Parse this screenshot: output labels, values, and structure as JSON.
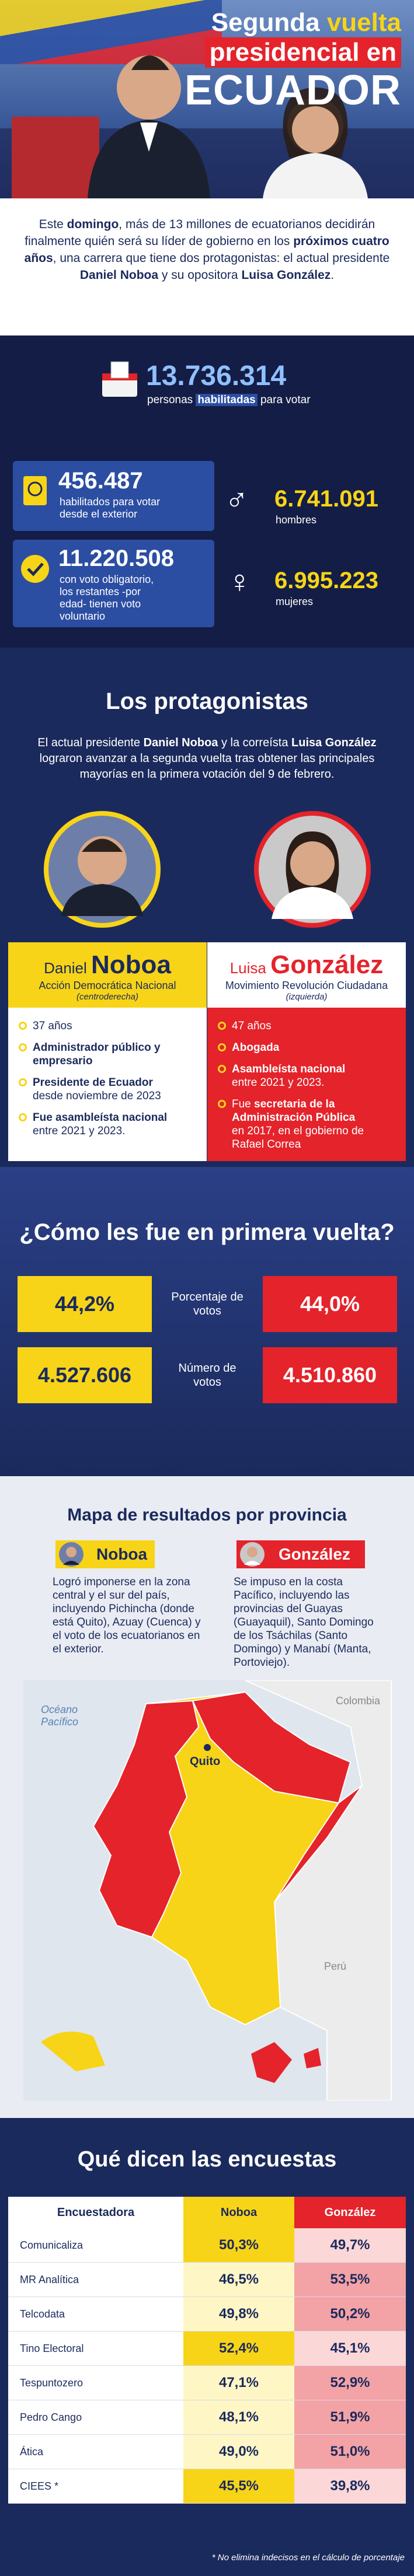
{
  "header": {
    "title": [
      "Segunda",
      "vuelta",
      "presidencial en",
      "ECUADOR"
    ]
  },
  "intro": [
    "Este ",
    "domingo",
    ", más de 13 millones de ecuatorianos decidirán finalmente quién será su líder de gobierno en los ",
    "próximos cuatro años",
    ", una carrera que tiene dos protagonistas: el actual presidente ",
    "Daniel Noboa",
    " y su opositora ",
    "Luisa González",
    "."
  ],
  "stats": {
    "total": {
      "number": "13.736.314",
      "label": [
        "personas ",
        "habilitadas",
        " para votar"
      ]
    },
    "exterior": {
      "number": "456.487",
      "label": "habilitados para votar desde el exterior"
    },
    "obligatory": {
      "number": "11.220.508",
      "label": "con voto obligatorio, los restantes -por edad- tienen voto voluntario"
    },
    "men": {
      "number": "6.741.091",
      "label": "hombres"
    },
    "women": {
      "number": "6.995.223",
      "label": "mujeres"
    }
  },
  "protagonists": {
    "title": "Los protagonistas",
    "text": [
      "El actual presidente ",
      "Daniel Noboa",
      " y la correísta ",
      "Luisa González",
      " lograron avanzar a la segunda vuelta tras obtener las principales mayorías en la primera votación del 9 de febrero."
    ],
    "candidates": [
      {
        "first": "Daniel",
        "last": "Noboa",
        "party": "Acción Democrática Nacional",
        "lean": "(centroderecha)",
        "bullets": [
          {
            "text": "37 años"
          },
          {
            "bold": "Administrador público y empresario"
          },
          {
            "bold": "Presidente de Ecuador",
            "text": "desde noviembre de 2023"
          },
          {
            "bold": "Fue asambleísta nacional",
            "text": "entre 2021 y 2023."
          }
        ]
      },
      {
        "first": "Luisa",
        "last": "González",
        "party": "Movimiento Revolución Ciudadana",
        "lean": "(izquierda)",
        "bullets": [
          {
            "text": "47 años"
          },
          {
            "bold": "Abogada"
          },
          {
            "bold": "Asambleísta nacional",
            "text": "entre 2021 y 2023."
          },
          {
            "pre": "Fue ",
            "bold": "secretaria de la Administración Pública",
            "text": "en 2017, en el gobierno de Rafael Correa"
          }
        ]
      }
    ]
  },
  "first_round": {
    "title": "¿Cómo les fue en primera vuelta?",
    "rows": [
      {
        "label": "Porcentaje de votos",
        "noboa": "44,2%",
        "gonzalez": "44,0%"
      },
      {
        "label": "Número de votos",
        "noboa": "4.527.606",
        "gonzalez": "4.510.860"
      }
    ]
  },
  "map": {
    "title": "Mapa de resultados por provincia",
    "noboa": {
      "name": "Noboa",
      "text": "Logró imponerse en la zona central y el sur del país, incluyendo Pichincha (donde está Quito), Azuay (Cuenca) y el voto de los ecuatorianos en el exterior."
    },
    "gonzalez": {
      "name": "González",
      "text": "Se impuso en la costa Pacífico, incluyendo las provincias del Guayas (Guayaquil), Santo Domingo de los Tsáchilas (Santo Domingo) y Manabí (Manta, Portoviejo)."
    },
    "labels": {
      "ocean": "Océano Pacífico",
      "colombia": "Colombia",
      "peru": "Perú",
      "quito": "Quito"
    }
  },
  "polls": {
    "title": "Qué dicen las encuestas",
    "headers": [
      "Encuestadora",
      "Noboa",
      "González"
    ],
    "rows": [
      [
        "Comunicaliza",
        "50,3%",
        "49,7%"
      ],
      [
        "MR Analítica",
        "46,5%",
        "53,5%"
      ],
      [
        "Telcodata",
        "49,8%",
        "50,2%"
      ],
      [
        "Tino Electoral",
        "52,4%",
        "45,1%"
      ],
      [
        "Tespuntozero",
        "47,1%",
        "52,9%"
      ],
      [
        "Pedro Cango",
        "48,1%",
        "51,9%"
      ],
      [
        "Ática",
        "49,0%",
        "51,0%"
      ],
      [
        "CIEES *",
        "45,5%",
        "39,8%"
      ]
    ],
    "footnote": "* No elimina indecisos en el cálculo de porcentaje"
  }
}
